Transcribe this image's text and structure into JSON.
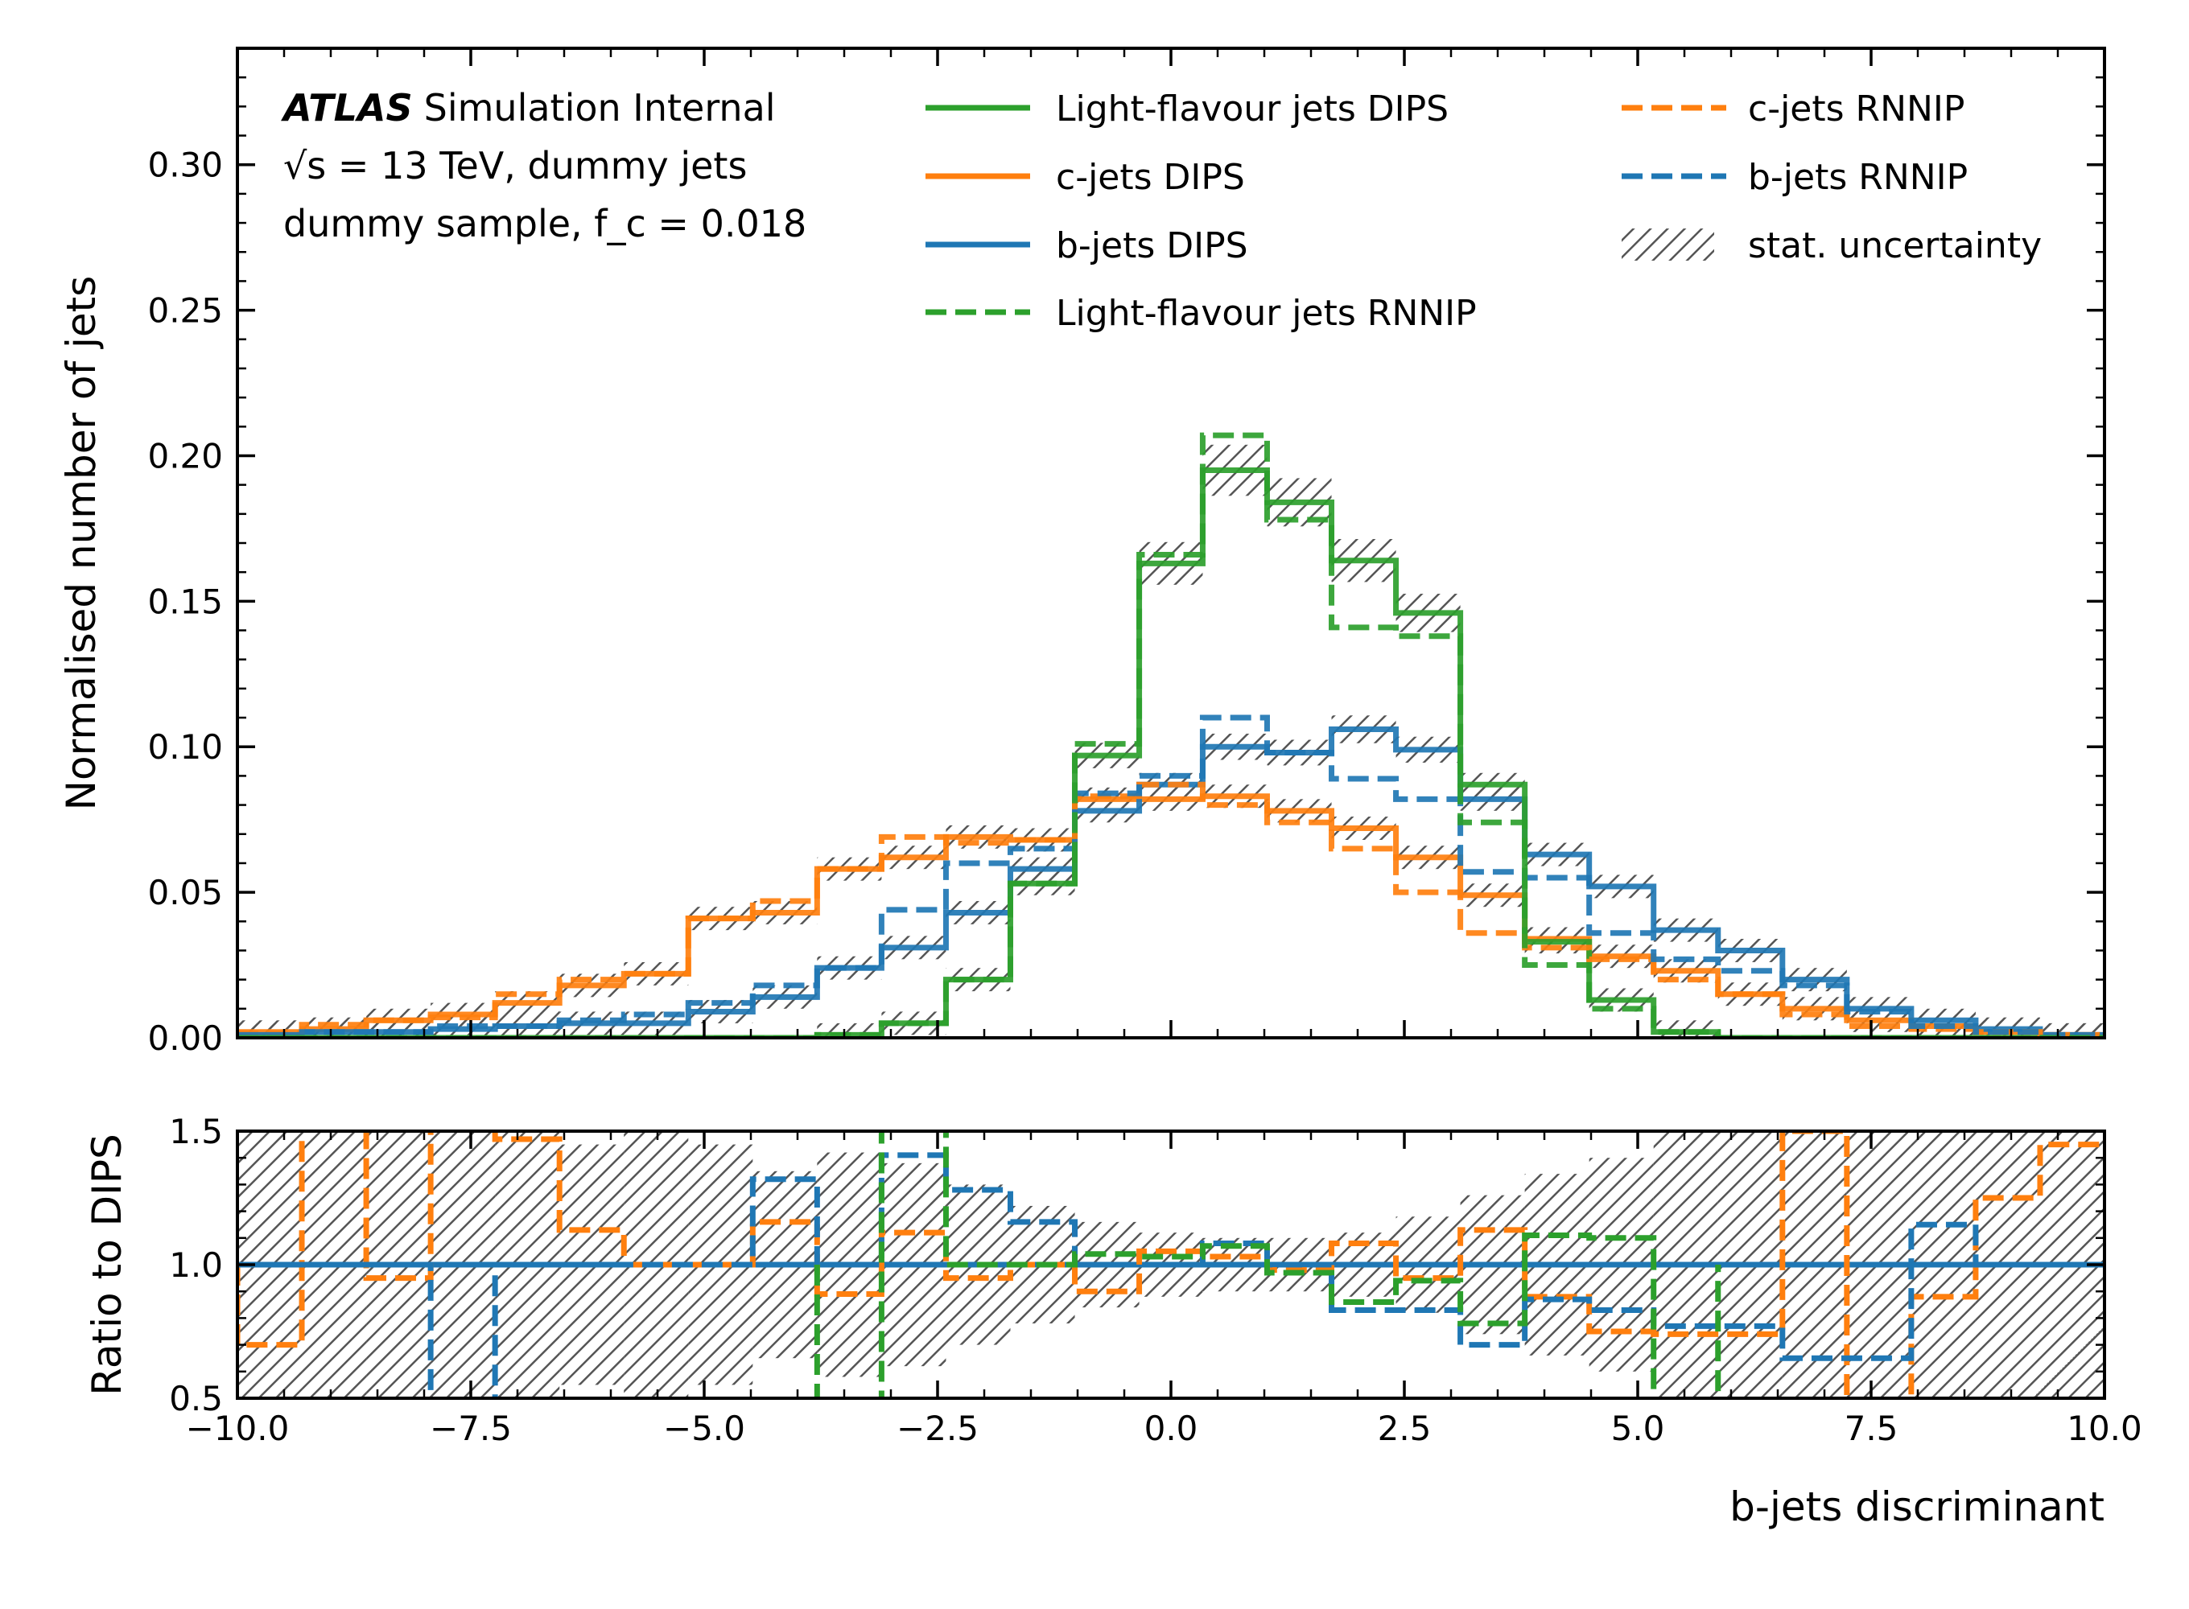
{
  "chart_data": [
    {
      "type": "histogram-step",
      "panel": "main",
      "xlim": [
        -10.0,
        10.0
      ],
      "ylim": [
        0.0,
        0.34
      ],
      "ylabel": "Normalised number of jets",
      "y_ticks": [
        0.0,
        0.05,
        0.1,
        0.15,
        0.2,
        0.25,
        0.3
      ],
      "y_tick_labels": [
        "0.00",
        "0.05",
        "0.10",
        "0.15",
        "0.20",
        "0.25",
        "0.30"
      ],
      "bin_edges": [
        -10.0,
        -9.31,
        -8.62,
        -7.93,
        -7.24,
        -6.55,
        -5.86,
        -5.17,
        -4.48,
        -3.79,
        -3.1,
        -2.41,
        -1.72,
        -1.03,
        -0.34,
        0.34,
        1.03,
        1.72,
        2.41,
        3.1,
        3.79,
        4.48,
        5.17,
        5.86,
        6.55,
        7.24,
        7.93,
        8.62,
        9.31,
        10.0
      ],
      "atlas_label": {
        "atlas": "ATLAS",
        "line1_rest": "Simulation Internal",
        "line2": "√s = 13 TeV, dummy jets",
        "line3": "dummy sample, f_c = 0.018"
      },
      "series": [
        {
          "name": "Light-flavour jets DIPS",
          "color": "#2ca02c",
          "style": "solid",
          "values": [
            0.0,
            0.0,
            0.0,
            0.0,
            0.0,
            0.0,
            0.0,
            0.0,
            0.0,
            0.001,
            0.005,
            0.02,
            0.053,
            0.097,
            0.163,
            0.195,
            0.184,
            0.164,
            0.146,
            0.087,
            0.033,
            0.013,
            0.002,
            0.0,
            0.0,
            0.0,
            0.0,
            0.0,
            0.0
          ]
        },
        {
          "name": "c-jets DIPS",
          "color": "#ff7f0e",
          "style": "solid",
          "values": [
            0.002,
            0.003,
            0.006,
            0.008,
            0.012,
            0.018,
            0.022,
            0.041,
            0.043,
            0.058,
            0.062,
            0.069,
            0.068,
            0.082,
            0.082,
            0.083,
            0.078,
            0.072,
            0.062,
            0.049,
            0.034,
            0.028,
            0.023,
            0.015,
            0.01,
            0.006,
            0.004,
            0.002,
            0.001
          ]
        },
        {
          "name": "b-jets DIPS",
          "color": "#1f77b4",
          "style": "solid",
          "values": [
            0.001,
            0.002,
            0.002,
            0.003,
            0.004,
            0.005,
            0.005,
            0.009,
            0.014,
            0.024,
            0.031,
            0.043,
            0.058,
            0.078,
            0.087,
            0.1,
            0.098,
            0.106,
            0.099,
            0.082,
            0.063,
            0.052,
            0.037,
            0.03,
            0.02,
            0.01,
            0.006,
            0.003,
            0.001
          ]
        },
        {
          "name": "Light-flavour jets RNNIP",
          "color": "#2ca02c",
          "style": "dashed",
          "values": [
            0.0,
            0.0,
            0.0,
            0.0,
            0.0,
            0.0,
            0.0,
            0.0,
            0.0,
            0.001,
            0.005,
            0.02,
            0.053,
            0.101,
            0.166,
            0.207,
            0.178,
            0.141,
            0.138,
            0.074,
            0.025,
            0.01,
            0.002,
            0.0,
            0.0,
            0.0,
            0.0,
            0.0,
            0.0
          ]
        },
        {
          "name": "c-jets RNNIP",
          "color": "#ff7f0e",
          "style": "dashed",
          "values": [
            0.0015,
            0.0045,
            0.006,
            0.007,
            0.015,
            0.02,
            0.022,
            0.041,
            0.047,
            0.058,
            0.069,
            0.067,
            0.068,
            0.083,
            0.087,
            0.08,
            0.074,
            0.065,
            0.05,
            0.036,
            0.031,
            0.027,
            0.02,
            0.015,
            0.008,
            0.004,
            0.003,
            0.002,
            0.001
          ]
        },
        {
          "name": "b-jets RNNIP",
          "color": "#1f77b4",
          "style": "dashed",
          "values": [
            0.001,
            0.002,
            0.002,
            0.004,
            0.004,
            0.006,
            0.008,
            0.012,
            0.018,
            0.024,
            0.044,
            0.06,
            0.065,
            0.084,
            0.09,
            0.11,
            0.098,
            0.089,
            0.082,
            0.057,
            0.055,
            0.036,
            0.027,
            0.023,
            0.018,
            0.009,
            0.004,
            0.002,
            0.001
          ]
        }
      ],
      "uncertainty_label": "stat. uncertainty"
    },
    {
      "type": "histogram-step",
      "panel": "ratio",
      "xlim": [
        -10.0,
        10.0
      ],
      "ylim": [
        0.5,
        1.5
      ],
      "xlabel": "b-jets discriminant",
      "ylabel": "Ratio to DIPS",
      "x_ticks": [
        -10.0,
        -7.5,
        -5.0,
        -2.5,
        0.0,
        2.5,
        5.0,
        7.5,
        10.0
      ],
      "x_tick_labels": [
        "−10.0",
        "−7.5",
        "−5.0",
        "−2.5",
        "0.0",
        "2.5",
        "5.0",
        "7.5",
        "10.0"
      ],
      "y_ticks": [
        0.5,
        1.0,
        1.5
      ],
      "y_tick_labels": [
        "0.5",
        "1.0",
        "1.5"
      ],
      "series": [
        {
          "name": "b-jets DIPS",
          "color": "#1f77b4",
          "style": "solid",
          "values": [
            1.0,
            1.0,
            1.0,
            1.0,
            1.0,
            1.0,
            1.0,
            1.0,
            1.0,
            1.0,
            1.0,
            1.0,
            1.0,
            1.0,
            1.0,
            1.0,
            1.0,
            1.0,
            1.0,
            1.0,
            1.0,
            1.0,
            1.0,
            1.0,
            1.0,
            1.0,
            1.0,
            1.0,
            1.0
          ]
        },
        {
          "name": "c-jets RNNIP",
          "color": "#ff7f0e",
          "style": "dashed",
          "values": [
            0.7,
            1.55,
            0.95,
            1.55,
            1.47,
            1.13,
            1.0,
            1.0,
            1.16,
            0.89,
            1.12,
            0.95,
            1.0,
            0.9,
            1.05,
            1.03,
            0.98,
            1.08,
            0.95,
            1.13,
            0.88,
            0.75,
            0.74,
            0.74,
            1.5,
            0.45,
            0.88,
            1.25,
            1.45
          ]
        },
        {
          "name": "b-jets RNNIP",
          "color": "#1f77b4",
          "style": "dashed",
          "values": [
            1.0,
            1.0,
            1.0,
            0.42,
            1.0,
            1.0,
            1.0,
            1.0,
            1.32,
            1.0,
            1.41,
            1.28,
            1.16,
            1.0,
            1.0,
            1.08,
            1.0,
            0.83,
            0.83,
            0.7,
            0.87,
            0.83,
            0.77,
            0.77,
            0.65,
            0.65,
            1.15,
            1.0,
            1.0
          ]
        },
        {
          "name": "Light-flavour jets RNNIP",
          "color": "#2ca02c",
          "style": "dashed",
          "values": [
            null,
            null,
            null,
            null,
            null,
            null,
            null,
            null,
            null,
            0.4,
            1.55,
            1.0,
            1.0,
            1.04,
            1.03,
            1.07,
            0.97,
            0.86,
            0.94,
            0.78,
            1.11,
            1.1,
            0.3,
            null,
            null,
            null,
            null,
            null,
            null
          ]
        }
      ]
    }
  ]
}
